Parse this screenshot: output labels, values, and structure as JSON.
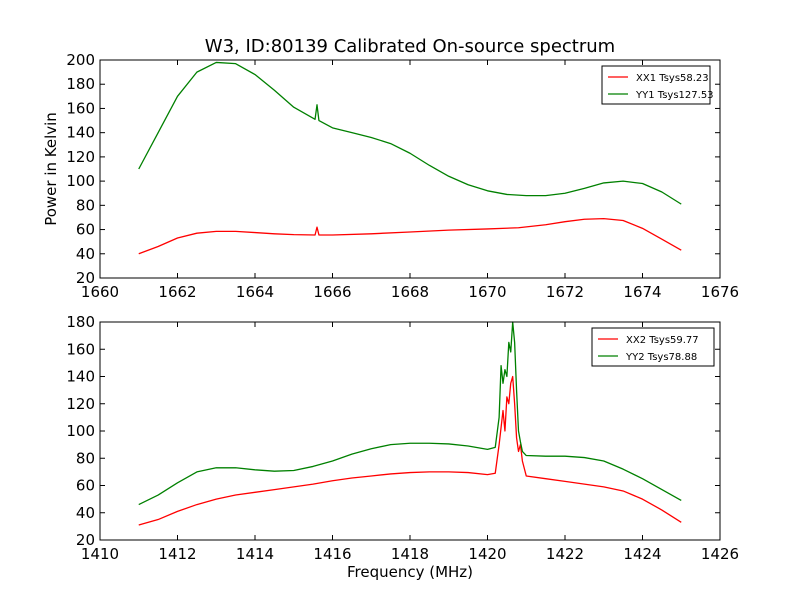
{
  "chart_data": [
    {
      "type": "line",
      "title": "W3, ID:80139 Calibrated On-source spectrum",
      "xlabel": "",
      "ylabel": "Power in Kelvin",
      "xlim": [
        1660,
        1676
      ],
      "ylim": [
        20,
        200
      ],
      "xticks": [
        1660,
        1662,
        1664,
        1666,
        1668,
        1670,
        1672,
        1674,
        1676
      ],
      "yticks": [
        20,
        40,
        60,
        80,
        100,
        120,
        140,
        160,
        180,
        200
      ],
      "legend": "top-right",
      "series": [
        {
          "name": "XX1 Tsys58.23",
          "color": "#ff0000",
          "points": [
            [
              1661.0,
              40
            ],
            [
              1661.5,
              46
            ],
            [
              1662.0,
              53
            ],
            [
              1662.5,
              57
            ],
            [
              1663.0,
              58.5
            ],
            [
              1663.5,
              58.5
            ],
            [
              1664.0,
              57.5
            ],
            [
              1664.5,
              56.5
            ],
            [
              1665.0,
              55.8
            ],
            [
              1665.55,
              55.5
            ],
            [
              1665.6,
              62
            ],
            [
              1665.65,
              55.5
            ],
            [
              1666.0,
              55.5
            ],
            [
              1667.0,
              56.5
            ],
            [
              1668.0,
              58
            ],
            [
              1669.0,
              59.5
            ],
            [
              1670.0,
              60.5
            ],
            [
              1670.8,
              61.5
            ],
            [
              1671.5,
              64
            ],
            [
              1672.0,
              66.5
            ],
            [
              1672.5,
              68.5
            ],
            [
              1673.0,
              69
            ],
            [
              1673.5,
              67.5
            ],
            [
              1674.0,
              61
            ],
            [
              1674.5,
              52
            ],
            [
              1675.0,
              43
            ]
          ]
        },
        {
          "name": "YY1 Tsys127.53",
          "color": "#008000",
          "points": [
            [
              1661.0,
              110
            ],
            [
              1661.5,
              140
            ],
            [
              1662.0,
              170
            ],
            [
              1662.5,
              190
            ],
            [
              1663.0,
              198
            ],
            [
              1663.5,
              197
            ],
            [
              1664.0,
              188
            ],
            [
              1664.5,
              175
            ],
            [
              1665.0,
              161
            ],
            [
              1665.55,
              151
            ],
            [
              1665.6,
              163
            ],
            [
              1665.65,
              150
            ],
            [
              1666.0,
              144
            ],
            [
              1666.5,
              140
            ],
            [
              1667.0,
              136
            ],
            [
              1667.5,
              131
            ],
            [
              1668.0,
              123
            ],
            [
              1668.5,
              113
            ],
            [
              1669.0,
              104
            ],
            [
              1669.5,
              97
            ],
            [
              1670.0,
              92
            ],
            [
              1670.5,
              89
            ],
            [
              1671.0,
              88
            ],
            [
              1671.5,
              88
            ],
            [
              1672.0,
              90
            ],
            [
              1672.5,
              94
            ],
            [
              1673.0,
              98.5
            ],
            [
              1673.5,
              100
            ],
            [
              1674.0,
              98
            ],
            [
              1674.5,
              91
            ],
            [
              1675.0,
              81
            ]
          ]
        }
      ]
    },
    {
      "type": "line",
      "title": "",
      "xlabel": "Frequency (MHz)",
      "ylabel": "",
      "xlim": [
        1410,
        1426
      ],
      "ylim": [
        20,
        180
      ],
      "xticks": [
        1410,
        1412,
        1414,
        1416,
        1418,
        1420,
        1422,
        1424,
        1426
      ],
      "yticks": [
        20,
        40,
        60,
        80,
        100,
        120,
        140,
        160,
        180
      ],
      "legend": "top-right",
      "series": [
        {
          "name": "XX2 Tsys59.77",
          "color": "#ff0000",
          "points": [
            [
              1411.0,
              31
            ],
            [
              1411.5,
              35
            ],
            [
              1412.0,
              41
            ],
            [
              1412.5,
              46
            ],
            [
              1413.0,
              50
            ],
            [
              1413.5,
              53
            ],
            [
              1414.0,
              55
            ],
            [
              1414.5,
              57
            ],
            [
              1415.0,
              59
            ],
            [
              1415.5,
              61
            ],
            [
              1416.0,
              63.5
            ],
            [
              1416.5,
              65.5
            ],
            [
              1417.0,
              67
            ],
            [
              1417.5,
              68.5
            ],
            [
              1418.0,
              69.5
            ],
            [
              1418.5,
              70
            ],
            [
              1419.0,
              70
            ],
            [
              1419.5,
              69.5
            ],
            [
              1420.0,
              68
            ],
            [
              1420.2,
              69
            ],
            [
              1420.3,
              90
            ],
            [
              1420.4,
              115
            ],
            [
              1420.45,
              100
            ],
            [
              1420.5,
              125
            ],
            [
              1420.55,
              120
            ],
            [
              1420.6,
              135
            ],
            [
              1420.65,
              140
            ],
            [
              1420.7,
              120
            ],
            [
              1420.75,
              95
            ],
            [
              1420.8,
              85
            ],
            [
              1420.85,
              90
            ],
            [
              1420.9,
              78
            ],
            [
              1421.0,
              67
            ],
            [
              1421.5,
              65
            ],
            [
              1422.0,
              63
            ],
            [
              1422.5,
              61
            ],
            [
              1423.0,
              59
            ],
            [
              1423.5,
              56
            ],
            [
              1424.0,
              50
            ],
            [
              1424.5,
              42
            ],
            [
              1425.0,
              33
            ]
          ]
        },
        {
          "name": "YY2 Tsys78.88",
          "color": "#008000",
          "points": [
            [
              1411.0,
              46
            ],
            [
              1411.5,
              53
            ],
            [
              1412.0,
              62
            ],
            [
              1412.5,
              70
            ],
            [
              1413.0,
              73
            ],
            [
              1413.5,
              73
            ],
            [
              1414.0,
              71.5
            ],
            [
              1414.5,
              70.5
            ],
            [
              1415.0,
              71
            ],
            [
              1415.5,
              74
            ],
            [
              1416.0,
              78
            ],
            [
              1416.5,
              83
            ],
            [
              1417.0,
              87
            ],
            [
              1417.5,
              90
            ],
            [
              1418.0,
              91
            ],
            [
              1418.5,
              91
            ],
            [
              1419.0,
              90.5
            ],
            [
              1419.5,
              89
            ],
            [
              1420.0,
              86.5
            ],
            [
              1420.2,
              88
            ],
            [
              1420.3,
              110
            ],
            [
              1420.35,
              148
            ],
            [
              1420.4,
              135
            ],
            [
              1420.45,
              145
            ],
            [
              1420.5,
              140
            ],
            [
              1420.55,
              165
            ],
            [
              1420.6,
              158
            ],
            [
              1420.65,
              180
            ],
            [
              1420.7,
              165
            ],
            [
              1420.75,
              130
            ],
            [
              1420.8,
              100
            ],
            [
              1420.85,
              92
            ],
            [
              1420.9,
              85
            ],
            [
              1421.0,
              82
            ],
            [
              1421.5,
              81.5
            ],
            [
              1422.0,
              81.5
            ],
            [
              1422.5,
              80.5
            ],
            [
              1423.0,
              78
            ],
            [
              1423.5,
              72
            ],
            [
              1424.0,
              65
            ],
            [
              1424.5,
              57
            ],
            [
              1425.0,
              49
            ]
          ]
        }
      ]
    }
  ]
}
